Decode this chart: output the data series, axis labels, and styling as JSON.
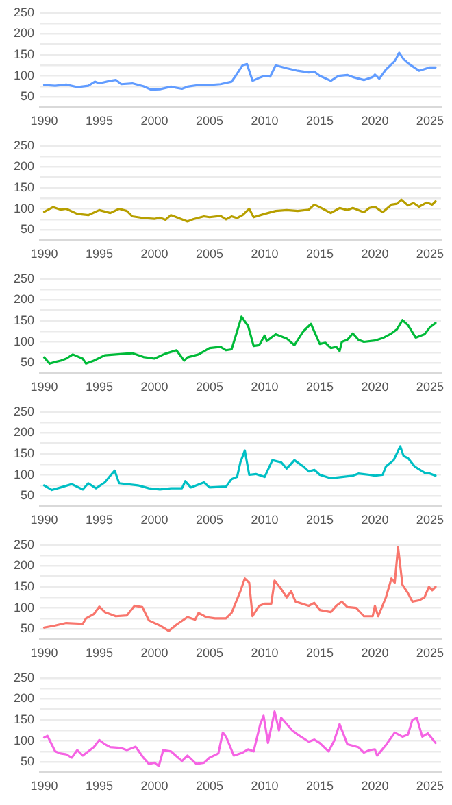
{
  "chart_data": [
    {
      "type": "line",
      "series": [
        {
          "color": "#619cff",
          "x": [
            1990,
            1991,
            1992,
            1993,
            1994,
            1994.6,
            1995,
            1996,
            1996.5,
            1997,
            1998,
            1999,
            1999.7,
            2000.5,
            2001.5,
            2002.5,
            2003,
            2004,
            2005,
            2006,
            2007,
            2007.5,
            2008,
            2008.4,
            2008.9,
            2009.5,
            2010,
            2010.5,
            2011,
            2012,
            2013,
            2014,
            2014.5,
            2015,
            2016,
            2016.7,
            2017.5,
            2018,
            2019,
            2019.8,
            2020,
            2020.4,
            2021,
            2021.8,
            2022.2,
            2022.6,
            2023,
            2024,
            2025,
            2025.5
          ],
          "values": [
            78,
            76,
            79,
            73,
            76,
            86,
            82,
            88,
            90,
            80,
            82,
            75,
            67,
            68,
            74,
            69,
            74,
            78,
            78,
            80,
            86,
            105,
            125,
            128,
            88,
            95,
            100,
            98,
            125,
            118,
            112,
            108,
            110,
            100,
            88,
            100,
            102,
            97,
            90,
            97,
            103,
            93,
            115,
            135,
            155,
            140,
            130,
            112,
            120,
            120
          ]
        }
      ],
      "xlim": [
        1989.6,
        2026
      ],
      "xticks": [
        1990,
        1995,
        2000,
        2005,
        2010,
        2015,
        2020,
        2025
      ],
      "ylim": [
        25,
        250
      ],
      "yticks": [
        {
          "value": 25,
          "label": null
        },
        50,
        {
          "value": 75,
          "label": null
        },
        100,
        {
          "value": 125,
          "label": null
        },
        150,
        {
          "value": 175,
          "label": null
        },
        200,
        {
          "value": 225,
          "label": null
        },
        250
      ],
      "grid": "y",
      "legend": false,
      "marker": "none",
      "line_style": "solid"
    },
    {
      "type": "line",
      "series": [
        {
          "color": "#b79f00",
          "x": [
            1990,
            1990.8,
            1991.5,
            1992,
            1993,
            1994,
            1995,
            1996,
            1996.8,
            1997.5,
            1998,
            1999,
            2000,
            2000.5,
            2001,
            2001.5,
            2002,
            2003,
            2003.5,
            2004.5,
            2005,
            2006,
            2006.5,
            2007,
            2007.5,
            2008,
            2008.6,
            2009,
            2010,
            2011,
            2012,
            2013,
            2014,
            2014.5,
            2015,
            2016,
            2016.8,
            2017.5,
            2018,
            2019,
            2019.5,
            2020,
            2020.7,
            2021.5,
            2022,
            2022.4,
            2023,
            2023.5,
            2024,
            2024.7,
            2025.2,
            2025.5
          ],
          "values": [
            93,
            104,
            98,
            100,
            88,
            85,
            97,
            90,
            100,
            95,
            82,
            78,
            76,
            79,
            74,
            85,
            80,
            70,
            75,
            82,
            80,
            83,
            75,
            82,
            78,
            85,
            100,
            80,
            88,
            95,
            97,
            95,
            98,
            110,
            104,
            90,
            102,
            97,
            102,
            92,
            102,
            105,
            92,
            110,
            112,
            122,
            108,
            114,
            105,
            115,
            110,
            118
          ]
        }
      ],
      "xlim": [
        1989.6,
        2026
      ],
      "xticks": [
        1990,
        1995,
        2000,
        2005,
        2010,
        2015,
        2020,
        2025
      ],
      "ylim": [
        25,
        250
      ],
      "yticks": [
        {
          "value": 25,
          "label": null
        },
        50,
        {
          "value": 75,
          "label": null
        },
        100,
        {
          "value": 125,
          "label": null
        },
        150,
        {
          "value": 175,
          "label": null
        },
        200,
        {
          "value": 225,
          "label": null
        },
        250
      ],
      "grid": "y",
      "legend": false,
      "marker": "none",
      "line_style": "solid"
    },
    {
      "type": "line",
      "series": [
        {
          "color": "#00ba38",
          "x": [
            1990,
            1990.5,
            1991,
            1991.5,
            1992,
            1992.6,
            1993.5,
            1993.8,
            1994.5,
            1995.5,
            1996.5,
            1997.5,
            1998,
            1999,
            2000,
            2001,
            2002,
            2002.7,
            2003,
            2004,
            2005,
            2006,
            2006.5,
            2007,
            2007.5,
            2007.9,
            2008.5,
            2009,
            2009.5,
            2010,
            2010.2,
            2011,
            2012,
            2012.7,
            2013.5,
            2014.2,
            2015,
            2015.5,
            2016,
            2016.5,
            2016.8,
            2017,
            2017.5,
            2018,
            2018.5,
            2019,
            2020,
            2020.8,
            2021.5,
            2022,
            2022.5,
            2023,
            2023.7,
            2024.5,
            2025,
            2025.5
          ],
          "values": [
            63,
            48,
            52,
            55,
            60,
            70,
            60,
            48,
            55,
            68,
            70,
            72,
            73,
            64,
            60,
            72,
            80,
            55,
            63,
            70,
            85,
            88,
            80,
            82,
            125,
            160,
            138,
            90,
            92,
            115,
            102,
            118,
            108,
            92,
            125,
            143,
            95,
            98,
            85,
            88,
            78,
            100,
            105,
            120,
            105,
            100,
            103,
            110,
            120,
            130,
            152,
            140,
            110,
            118,
            135,
            145
          ]
        }
      ],
      "xlim": [
        1989.6,
        2026
      ],
      "xticks": [
        1990,
        1995,
        2000,
        2005,
        2010,
        2015,
        2020,
        2025
      ],
      "ylim": [
        25,
        250
      ],
      "yticks": [
        {
          "value": 25,
          "label": null
        },
        50,
        {
          "value": 75,
          "label": null
        },
        100,
        {
          "value": 125,
          "label": null
        },
        150,
        {
          "value": 175,
          "label": null
        },
        200,
        {
          "value": 225,
          "label": null
        },
        250
      ],
      "grid": "y",
      "legend": false,
      "marker": "none",
      "line_style": "solid"
    },
    {
      "type": "line",
      "series": [
        {
          "color": "#00bfc4",
          "x": [
            1990,
            1990.7,
            1991.5,
            1992.5,
            1993.5,
            1994,
            1994.7,
            1995.5,
            1996,
            1996.4,
            1996.8,
            1997.5,
            1998.5,
            1999.5,
            2000.5,
            2001.5,
            2002.5,
            2002.8,
            2003.3,
            2004.5,
            2005,
            2006.5,
            2007,
            2007.5,
            2007.8,
            2008.2,
            2008.6,
            2009.2,
            2010,
            2010.7,
            2011.5,
            2012,
            2012.7,
            2013.5,
            2014,
            2014.5,
            2015,
            2016,
            2017,
            2018,
            2018.5,
            2019.5,
            2020,
            2020.7,
            2021,
            2021.7,
            2022.3,
            2022.6,
            2023,
            2023.6,
            2024.5,
            2025,
            2025.5
          ],
          "values": [
            75,
            64,
            70,
            78,
            65,
            80,
            68,
            82,
            98,
            110,
            80,
            78,
            75,
            68,
            65,
            68,
            68,
            85,
            70,
            82,
            70,
            72,
            90,
            95,
            130,
            158,
            100,
            102,
            95,
            135,
            130,
            115,
            135,
            120,
            108,
            112,
            100,
            92,
            95,
            98,
            103,
            100,
            98,
            100,
            120,
            135,
            168,
            145,
            140,
            120,
            105,
            103,
            98
          ]
        }
      ],
      "xlim": [
        1989.6,
        2026
      ],
      "xticks": [
        1990,
        1995,
        2000,
        2005,
        2010,
        2015,
        2020,
        2025
      ],
      "ylim": [
        25,
        250
      ],
      "yticks": [
        {
          "value": 25,
          "label": null
        },
        50,
        {
          "value": 75,
          "label": null
        },
        100,
        {
          "value": 125,
          "label": null
        },
        150,
        {
          "value": 175,
          "label": null
        },
        200,
        {
          "value": 225,
          "label": null
        },
        250
      ],
      "grid": "y",
      "legend": false,
      "marker": "none",
      "line_style": "solid"
    },
    {
      "type": "line",
      "series": [
        {
          "color": "#f8766d",
          "x": [
            1990,
            1991,
            1992,
            1993.5,
            1993.8,
            1994.5,
            1995,
            1995.5,
            1996.5,
            1997.5,
            1998.2,
            1998.9,
            1999.5,
            2000.5,
            2001.3,
            2002,
            2003,
            2003.7,
            2004,
            2004.7,
            2005.5,
            2006.5,
            2007,
            2007.8,
            2008.2,
            2008.6,
            2008.9,
            2009.5,
            2010,
            2010.6,
            2010.9,
            2011.5,
            2012,
            2012.4,
            2012.8,
            2014,
            2014.5,
            2015,
            2016,
            2016.5,
            2017,
            2017.5,
            2018.3,
            2019,
            2019.8,
            2020,
            2020.3,
            2021,
            2021.5,
            2021.8,
            2022.1,
            2022.5,
            2023,
            2023.4,
            2024,
            2024.5,
            2024.9,
            2025.2,
            2025.5
          ],
          "values": [
            53,
            58,
            64,
            62,
            75,
            85,
            103,
            90,
            80,
            82,
            105,
            102,
            70,
            58,
            45,
            60,
            78,
            72,
            88,
            78,
            75,
            75,
            88,
            140,
            170,
            160,
            80,
            105,
            110,
            110,
            165,
            145,
            125,
            140,
            115,
            105,
            112,
            95,
            90,
            105,
            115,
            102,
            100,
            80,
            80,
            105,
            80,
            125,
            170,
            160,
            245,
            155,
            135,
            115,
            118,
            125,
            150,
            142,
            150
          ]
        }
      ],
      "xlim": [
        1989.6,
        2026
      ],
      "xticks": [
        1990,
        1995,
        2000,
        2005,
        2010,
        2015,
        2020,
        2025
      ],
      "ylim": [
        25,
        250
      ],
      "yticks": [
        {
          "value": 25,
          "label": null
        },
        50,
        {
          "value": 75,
          "label": null
        },
        100,
        {
          "value": 125,
          "label": null
        },
        150,
        {
          "value": 175,
          "label": null
        },
        200,
        {
          "value": 225,
          "label": null
        },
        250
      ],
      "grid": "y",
      "legend": false,
      "marker": "none",
      "line_style": "solid"
    },
    {
      "type": "line",
      "series": [
        {
          "color": "#f564e3",
          "x": [
            1990,
            1990.3,
            1991,
            1991.5,
            1992,
            1992.5,
            1993,
            1993.5,
            1994.5,
            1995,
            1995.5,
            1996,
            1997,
            1997.5,
            1998.3,
            1999,
            1999.5,
            2000,
            2000.4,
            2000.8,
            2001.5,
            2002.5,
            2003,
            2003.8,
            2004.5,
            2005,
            2005.8,
            2006.2,
            2006.5,
            2007.2,
            2008,
            2008.5,
            2009,
            2009.6,
            2009.9,
            2010.3,
            2010.9,
            2011.3,
            2011.5,
            2012.5,
            2013,
            2014,
            2014.5,
            2015,
            2015.8,
            2016.3,
            2016.8,
            2017.5,
            2018.5,
            2019,
            2019.5,
            2020,
            2020.2,
            2021,
            2021.8,
            2022.5,
            2023,
            2023.4,
            2023.8,
            2024.3,
            2024.8,
            2025.5
          ],
          "values": [
            108,
            112,
            75,
            70,
            68,
            60,
            78,
            65,
            85,
            102,
            92,
            85,
            83,
            78,
            86,
            60,
            45,
            48,
            40,
            78,
            75,
            52,
            65,
            45,
            48,
            60,
            70,
            120,
            110,
            65,
            72,
            80,
            75,
            140,
            160,
            95,
            170,
            125,
            155,
            125,
            115,
            98,
            103,
            95,
            75,
            100,
            140,
            92,
            85,
            72,
            78,
            80,
            65,
            90,
            120,
            110,
            115,
            150,
            155,
            110,
            118,
            95
          ]
        }
      ],
      "xlim": [
        1989.6,
        2026
      ],
      "xticks": [
        1990,
        1995,
        2000,
        2005,
        2010,
        2015,
        2020,
        2025
      ],
      "ylim": [
        25,
        250
      ],
      "yticks": [
        {
          "value": 25,
          "label": null
        },
        50,
        {
          "value": 75,
          "label": null
        },
        100,
        {
          "value": 125,
          "label": null
        },
        150,
        {
          "value": 175,
          "label": null
        },
        200,
        {
          "value": 225,
          "label": null
        },
        250
      ],
      "grid": "y",
      "legend": false,
      "marker": "none",
      "line_style": "solid"
    }
  ]
}
